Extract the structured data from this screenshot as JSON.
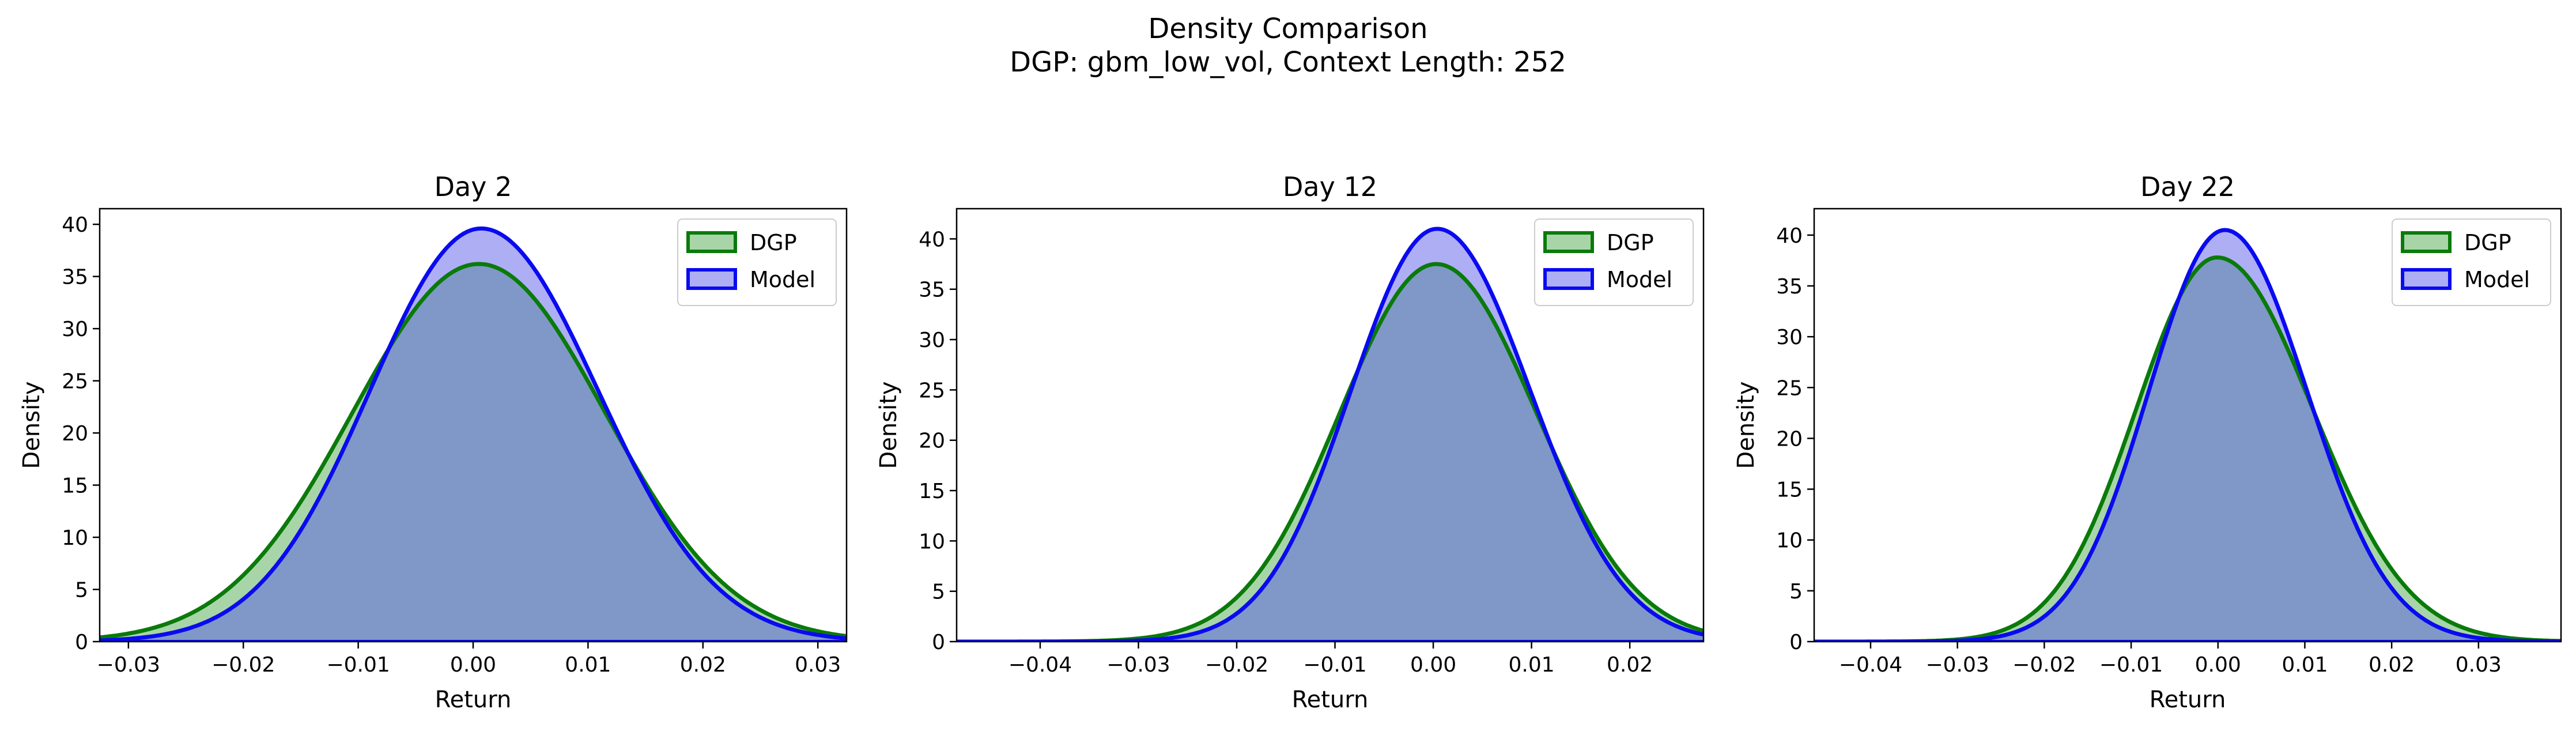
{
  "figure": {
    "title_line1": "Density Comparison",
    "title_line2": "DGP: gbm_low_vol, Context Length: 252"
  },
  "colors": {
    "dgp_line": "#0a7a0a",
    "dgp_fill": "#a8d5a8",
    "model_line": "#0a0af0",
    "model_fill": "#aeaef5",
    "overlap_fill": "#7f98c8"
  },
  "chart_data": [
    {
      "type": "area",
      "title": "Day 2",
      "xlabel": "Return",
      "ylabel": "Density",
      "xlim": [
        -0.0325,
        0.0325
      ],
      "ylim": [
        0,
        41.5
      ],
      "xticks": [
        -0.03,
        -0.02,
        -0.01,
        0.0,
        0.01,
        0.02,
        0.03
      ],
      "xtick_labels": [
        "−0.03",
        "−0.02",
        "−0.01",
        "0.00",
        "0.01",
        "0.02",
        "0.03"
      ],
      "yticks": [
        0,
        5,
        10,
        15,
        20,
        25,
        30,
        35,
        40
      ],
      "ytick_labels": [
        "0",
        "5",
        "10",
        "15",
        "20",
        "25",
        "30",
        "35",
        "40"
      ],
      "legend": {
        "position": "top-right",
        "entries": [
          "DGP",
          "Model"
        ]
      },
      "grid": false,
      "series": [
        {
          "name": "DGP",
          "mean": 0.0005,
          "peak": 36.2,
          "sd_left": 0.011,
          "sd_right": 0.011,
          "tail_scale": 1.0
        },
        {
          "name": "Model",
          "mean": 0.0007,
          "peak": 39.6,
          "sd_left": 0.0097,
          "sd_right": 0.0102,
          "tail_scale": 1.0
        }
      ]
    },
    {
      "type": "area",
      "title": "Day 12",
      "xlabel": "Return",
      "ylabel": "Density",
      "xlim": [
        -0.0485,
        0.0275
      ],
      "ylim": [
        0,
        43.0
      ],
      "xticks": [
        -0.04,
        -0.03,
        -0.02,
        -0.01,
        0.0,
        0.01,
        0.02
      ],
      "xtick_labels": [
        "−0.04",
        "−0.03",
        "−0.02",
        "−0.01",
        "0.00",
        "0.01",
        "0.02"
      ],
      "yticks": [
        0,
        5,
        10,
        15,
        20,
        25,
        30,
        35,
        40
      ],
      "ytick_labels": [
        "0",
        "5",
        "10",
        "15",
        "20",
        "25",
        "30",
        "35",
        "40"
      ],
      "legend": {
        "position": "top-right",
        "entries": [
          "DGP",
          "Model"
        ]
      },
      "grid": false,
      "series": [
        {
          "name": "DGP",
          "mean": 0.0003,
          "peak": 37.5,
          "sd_left": 0.0098,
          "sd_right": 0.0102,
          "tail_scale": 1.0
        },
        {
          "name": "Model",
          "mean": 0.0004,
          "peak": 41.0,
          "sd_left": 0.0088,
          "sd_right": 0.0095,
          "tail_scale": 1.0
        }
      ]
    },
    {
      "type": "area",
      "title": "Day 22",
      "xlabel": "Return",
      "ylabel": "Density",
      "xlim": [
        -0.0465,
        0.0395
      ],
      "ylim": [
        0,
        42.6
      ],
      "xticks": [
        -0.04,
        -0.03,
        -0.02,
        -0.01,
        0.0,
        0.01,
        0.02,
        0.03
      ],
      "xtick_labels": [
        "−0.04",
        "−0.03",
        "−0.02",
        "−0.01",
        "0.00",
        "0.01",
        "0.02",
        "0.03"
      ],
      "yticks": [
        0,
        5,
        10,
        15,
        20,
        25,
        30,
        35,
        40
      ],
      "ytick_labels": [
        "0",
        "5",
        "10",
        "15",
        "20",
        "25",
        "30",
        "35",
        "40"
      ],
      "legend": {
        "position": "top-right",
        "entries": [
          "DGP",
          "Model"
        ]
      },
      "grid": false,
      "series": [
        {
          "name": "DGP",
          "mean": -0.0001,
          "peak": 37.8,
          "sd_left": 0.0093,
          "sd_right": 0.011,
          "tail_scale": 1.0
        },
        {
          "name": "Model",
          "mean": 0.0008,
          "peak": 40.5,
          "sd_left": 0.0088,
          "sd_right": 0.0095,
          "tail_scale": 1.0
        }
      ]
    }
  ]
}
